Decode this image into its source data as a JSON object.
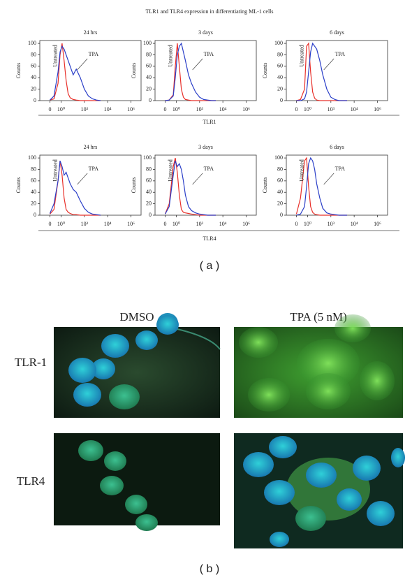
{
  "figure": {
    "title": "TLR1 and TLR4 expression in differentiating ML-1 cells",
    "marker_labels": [
      "TLR1",
      "TLR4"
    ],
    "label": "( a )"
  },
  "micrographs": {
    "columns": [
      "DMSO",
      "TPA (5 nM)"
    ],
    "rows": [
      "TLR-1",
      "TLR4"
    ],
    "label": "( b )"
  },
  "chart_data": [
    {
      "type": "line",
      "title": "24 hrs",
      "ylabel": "Counts",
      "ylim": [
        0,
        105
      ],
      "yticks": [
        0,
        20,
        40,
        60,
        80,
        100
      ],
      "xlim": [
        0,
        10
      ],
      "xticks": [
        {
          "value": 1.0,
          "label": "0"
        },
        {
          "value": 2.1,
          "label": "10⁰"
        },
        {
          "value": 4.4,
          "label": "10³"
        },
        {
          "value": 6.7,
          "label": "10⁴"
        },
        {
          "value": 9.0,
          "label": "10⁶"
        }
      ],
      "x": [
        1.0,
        1.4,
        1.8,
        2.0,
        2.2,
        2.4,
        2.6,
        2.8,
        3.0,
        3.3,
        3.6,
        4.0,
        4.4,
        4.8,
        5.2,
        5.6,
        6.0
      ],
      "series": [
        {
          "name": "Untreated",
          "color": "#e8302a",
          "values": [
            1,
            3,
            30,
            80,
            100,
            70,
            35,
            12,
            5,
            2,
            1,
            0,
            0,
            0,
            0,
            0,
            0
          ]
        },
        {
          "name": "TPA",
          "color": "#2b3fc8",
          "values": [
            1,
            8,
            50,
            85,
            95,
            90,
            80,
            70,
            60,
            45,
            55,
            40,
            20,
            8,
            3,
            1,
            0
          ]
        }
      ]
    },
    {
      "type": "line",
      "title": "3 days",
      "ylabel": "Counts",
      "ylim": [
        0,
        105
      ],
      "yticks": [
        0,
        20,
        40,
        60,
        80,
        100
      ],
      "xlim": [
        0,
        10
      ],
      "xticks": [
        {
          "value": 1.0,
          "label": "0"
        },
        {
          "value": 2.1,
          "label": "10⁰"
        },
        {
          "value": 4.4,
          "label": "10³"
        },
        {
          "value": 6.7,
          "label": "10⁴"
        },
        {
          "value": 9.0,
          "label": "10⁶"
        }
      ],
      "x": [
        1.0,
        1.4,
        1.8,
        2.0,
        2.2,
        2.4,
        2.6,
        2.8,
        3.0,
        3.3,
        3.6,
        4.0,
        4.4,
        4.8,
        5.2,
        5.6,
        6.0
      ],
      "series": [
        {
          "name": "Untreated",
          "color": "#e8302a",
          "values": [
            0,
            1,
            10,
            60,
            100,
            60,
            20,
            6,
            2,
            1,
            0,
            0,
            0,
            0,
            0,
            0,
            0
          ]
        },
        {
          "name": "TPA",
          "color": "#2b3fc8",
          "values": [
            0,
            1,
            8,
            40,
            80,
            95,
            100,
            85,
            70,
            45,
            30,
            15,
            6,
            2,
            1,
            0,
            0
          ]
        }
      ]
    },
    {
      "type": "line",
      "title": "6 days",
      "ylabel": "Counts",
      "ylim": [
        0,
        105
      ],
      "yticks": [
        0,
        20,
        40,
        60,
        80,
        100
      ],
      "xlim": [
        0,
        10
      ],
      "xticks": [
        {
          "value": 1.0,
          "label": "0"
        },
        {
          "value": 2.1,
          "label": "10⁰"
        },
        {
          "value": 4.4,
          "label": "10³"
        },
        {
          "value": 6.7,
          "label": "10⁴"
        },
        {
          "value": 9.0,
          "label": "10⁶"
        }
      ],
      "x": [
        1.0,
        1.4,
        1.8,
        2.0,
        2.2,
        2.4,
        2.6,
        2.8,
        3.0,
        3.3,
        3.6,
        4.0,
        4.4,
        4.8,
        5.2,
        5.6,
        6.0
      ],
      "series": [
        {
          "name": "Untreated",
          "color": "#e8302a",
          "values": [
            0,
            2,
            20,
            95,
            100,
            50,
            15,
            4,
            1,
            0,
            0,
            0,
            0,
            0,
            0,
            0,
            0
          ]
        },
        {
          "name": "TPA",
          "color": "#2b3fc8",
          "values": [
            0,
            0,
            3,
            15,
            50,
            85,
            100,
            95,
            90,
            70,
            45,
            20,
            6,
            2,
            0,
            0,
            0
          ]
        }
      ]
    },
    {
      "type": "line",
      "title": "24 hrs",
      "ylabel": "Counts",
      "ylim": [
        0,
        105
      ],
      "yticks": [
        0,
        20,
        40,
        60,
        80,
        100
      ],
      "xlim": [
        0,
        10
      ],
      "xticks": [
        {
          "value": 1.0,
          "label": "0"
        },
        {
          "value": 2.1,
          "label": "10⁰"
        },
        {
          "value": 4.4,
          "label": "10³"
        },
        {
          "value": 6.7,
          "label": "10⁴"
        },
        {
          "value": 9.0,
          "label": "10⁶"
        }
      ],
      "x": [
        1.0,
        1.4,
        1.8,
        2.0,
        2.2,
        2.4,
        2.6,
        2.8,
        3.0,
        3.3,
        3.6,
        4.0,
        4.4,
        4.8,
        5.2,
        5.6,
        6.0
      ],
      "series": [
        {
          "name": "Untreated",
          "color": "#e8302a",
          "values": [
            2,
            10,
            60,
            95,
            70,
            30,
            10,
            5,
            3,
            1,
            1,
            0,
            0,
            0,
            0,
            0,
            0
          ]
        },
        {
          "name": "TPA",
          "color": "#2b3fc8",
          "values": [
            3,
            20,
            60,
            95,
            85,
            70,
            75,
            65,
            55,
            45,
            40,
            25,
            12,
            5,
            2,
            1,
            0
          ]
        }
      ]
    },
    {
      "type": "line",
      "title": "3 days",
      "ylabel": "Counts",
      "ylim": [
        0,
        105
      ],
      "yticks": [
        0,
        20,
        40,
        60,
        80,
        100
      ],
      "xlim": [
        0,
        10
      ],
      "xticks": [
        {
          "value": 1.0,
          "label": "0"
        },
        {
          "value": 2.1,
          "label": "10⁰"
        },
        {
          "value": 4.4,
          "label": "10³"
        },
        {
          "value": 6.7,
          "label": "10⁴"
        },
        {
          "value": 9.0,
          "label": "10⁶"
        }
      ],
      "x": [
        1.0,
        1.4,
        1.8,
        2.0,
        2.2,
        2.4,
        2.6,
        2.8,
        3.0,
        3.3,
        3.6,
        4.0,
        4.4,
        4.8,
        5.2,
        5.6,
        6.0
      ],
      "series": [
        {
          "name": "Untreated",
          "color": "#e8302a",
          "values": [
            2,
            20,
            85,
            100,
            75,
            35,
            10,
            5,
            4,
            3,
            2,
            1,
            0,
            0,
            0,
            0,
            0
          ]
        },
        {
          "name": "TPA",
          "color": "#2b3fc8",
          "values": [
            2,
            15,
            70,
            95,
            85,
            90,
            80,
            60,
            35,
            15,
            8,
            4,
            2,
            1,
            0,
            0,
            0
          ]
        }
      ]
    },
    {
      "type": "line",
      "title": "6 days",
      "ylabel": "Counts",
      "ylim": [
        0,
        105
      ],
      "yticks": [
        0,
        20,
        40,
        60,
        80,
        100
      ],
      "xlim": [
        0,
        10
      ],
      "xticks": [
        {
          "value": 1.0,
          "label": "0"
        },
        {
          "value": 2.1,
          "label": "10⁰"
        },
        {
          "value": 4.4,
          "label": "10³"
        },
        {
          "value": 6.7,
          "label": "10⁴"
        },
        {
          "value": 9.0,
          "label": "10⁶"
        }
      ],
      "x": [
        1.0,
        1.4,
        1.8,
        2.0,
        2.2,
        2.4,
        2.6,
        2.8,
        3.0,
        3.3,
        3.6,
        4.0,
        4.4,
        4.8,
        5.2,
        5.6,
        6.0
      ],
      "series": [
        {
          "name": "Untreated",
          "color": "#e8302a",
          "values": [
            2,
            30,
            95,
            100,
            50,
            15,
            5,
            2,
            1,
            0,
            0,
            0,
            0,
            0,
            0,
            0,
            0
          ]
        },
        {
          "name": "TPA",
          "color": "#2b3fc8",
          "values": [
            0,
            2,
            15,
            50,
            90,
            100,
            95,
            80,
            55,
            30,
            12,
            4,
            2,
            1,
            0,
            0,
            0
          ]
        }
      ]
    }
  ]
}
